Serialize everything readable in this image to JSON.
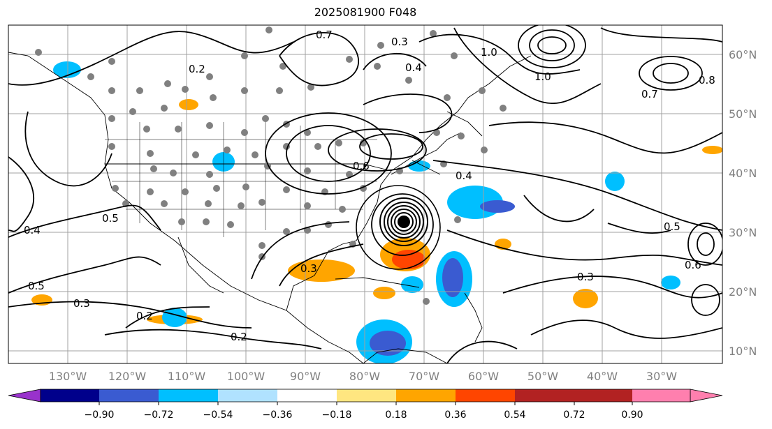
{
  "title": "2025081900 F048",
  "lon_labels": [
    "130°W",
    "120°W",
    "110°W",
    "100°W",
    "90°W",
    "80°W",
    "70°W",
    "60°W",
    "50°W",
    "40°W",
    "30°W"
  ],
  "lat_labels": [
    "60°N",
    "50°N",
    "40°N",
    "30°N",
    "20°N",
    "10°N"
  ],
  "colorbar": {
    "tick_labels": [
      "−0.90",
      "−0.72",
      "−0.54",
      "−0.36",
      "−0.18",
      "0.18",
      "0.36",
      "0.54",
      "0.72",
      "0.90"
    ],
    "colors": [
      "#9932cc",
      "#00008b",
      "#3a5bd1",
      "#00bfff",
      "#b0e2ff",
      "#ffffff",
      "#ffe680",
      "#ffa500",
      "#ff4500",
      "#b22222",
      "#ff7fae"
    ]
  },
  "contour_labels": [
    "0.7",
    "0.3",
    "1.0",
    "0.6",
    "0.5",
    "0.2",
    "0.4",
    "0.3",
    "1.0",
    "0.8",
    "0.7",
    "0.5",
    "0.6",
    "0.4",
    "0.3",
    "0.2",
    "0.2",
    "0.5",
    "0.3",
    "0.4"
  ],
  "colors": {
    "axis_text": "#808080",
    "grid": "#a0a0a0",
    "contour": "#000000"
  }
}
